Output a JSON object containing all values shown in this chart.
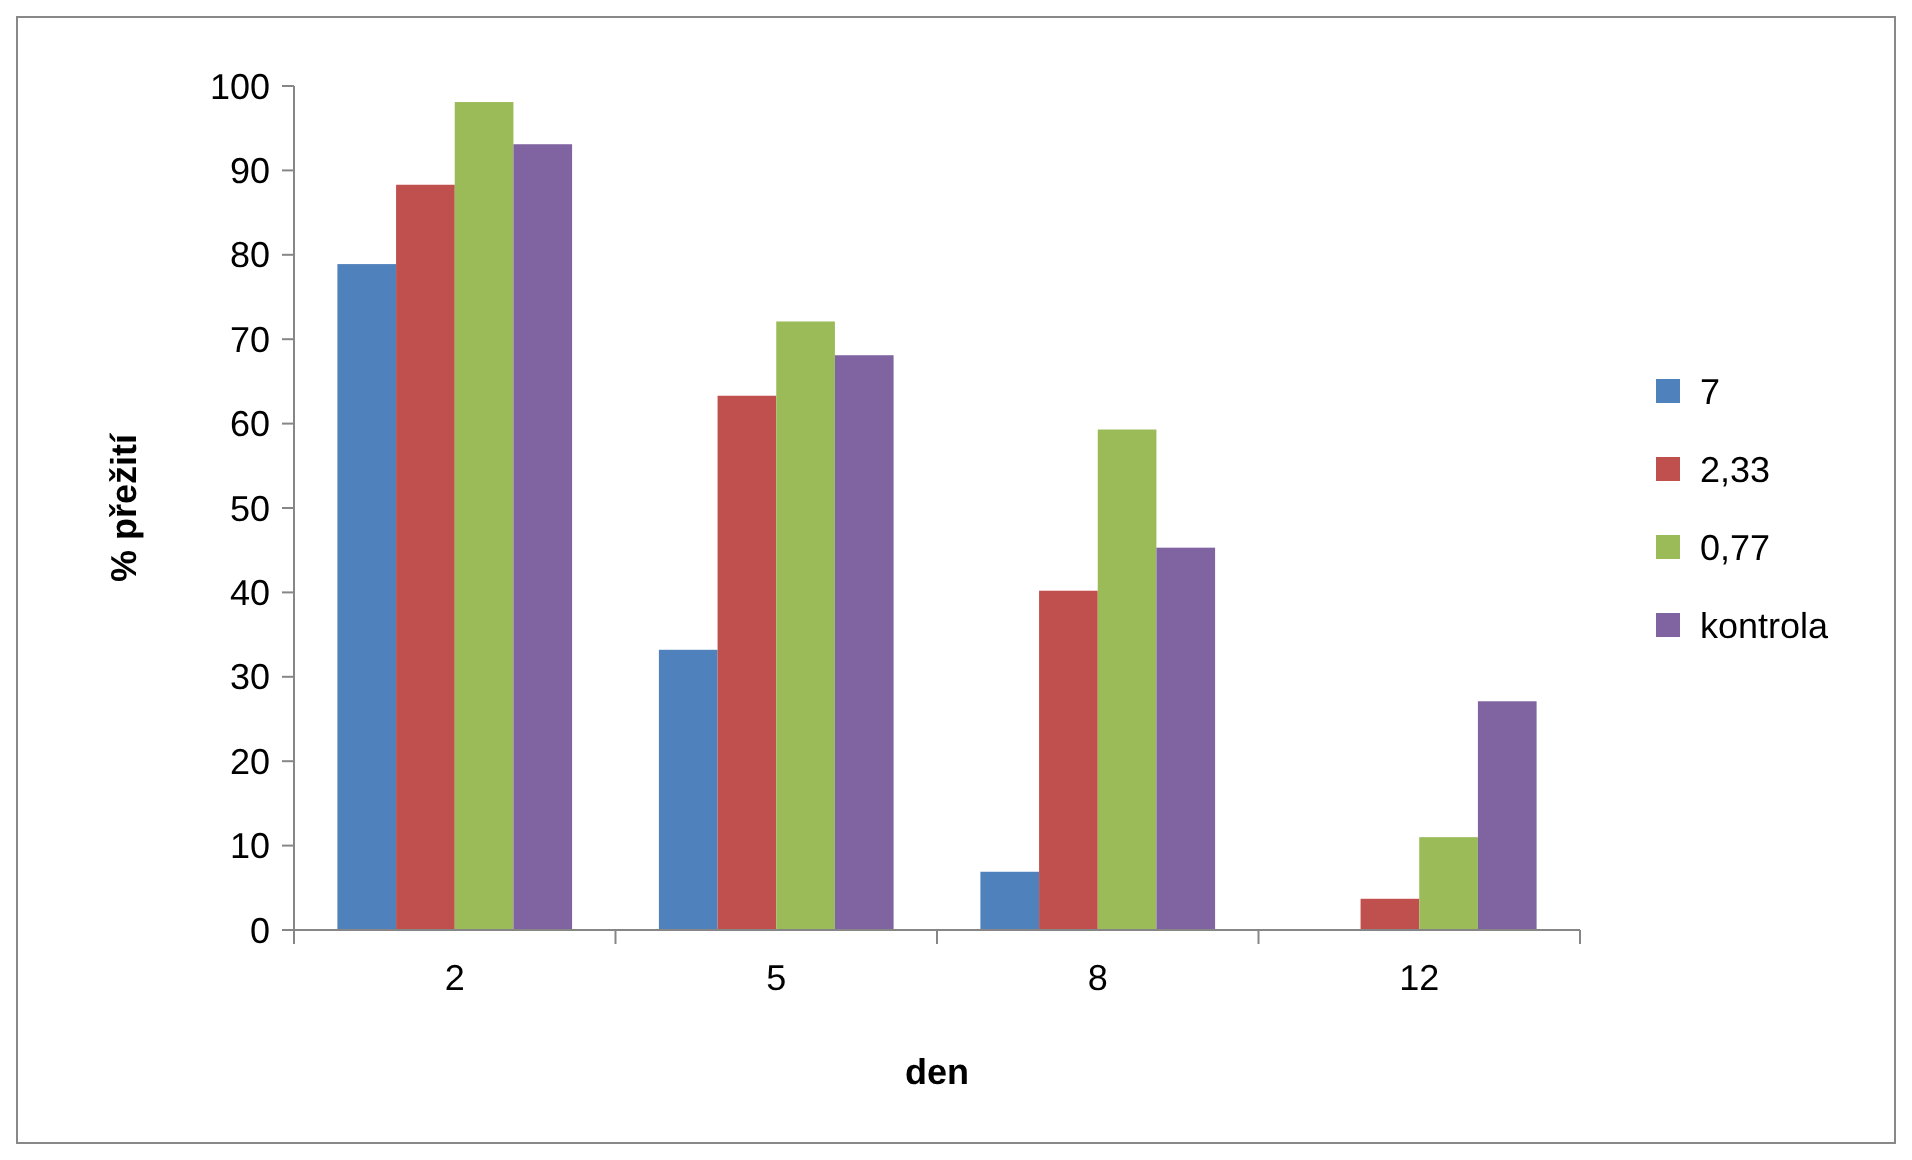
{
  "chart_data": {
    "type": "bar",
    "xlabel": "den",
    "ylabel": "% přežití",
    "categories": [
      "2",
      "5",
      "8",
      "12"
    ],
    "series": [
      {
        "name": "7",
        "color": "#4f81bd",
        "values": [
          78.9,
          33.2,
          6.9,
          0
        ]
      },
      {
        "name": "2,33",
        "color": "#c0504d",
        "values": [
          88.3,
          63.3,
          40.2,
          3.7
        ]
      },
      {
        "name": "0,77",
        "color": "#9bbb59",
        "values": [
          98.1,
          72.1,
          59.3,
          11.0
        ]
      },
      {
        "name": "kontrola",
        "color": "#8064a2",
        "values": [
          93.1,
          68.1,
          45.3,
          27.1
        ]
      }
    ],
    "ylim": [
      0,
      100
    ],
    "yticks": [
      0,
      10,
      20,
      30,
      40,
      50,
      60,
      70,
      80,
      90,
      100
    ],
    "grid": false,
    "legend": "right"
  }
}
